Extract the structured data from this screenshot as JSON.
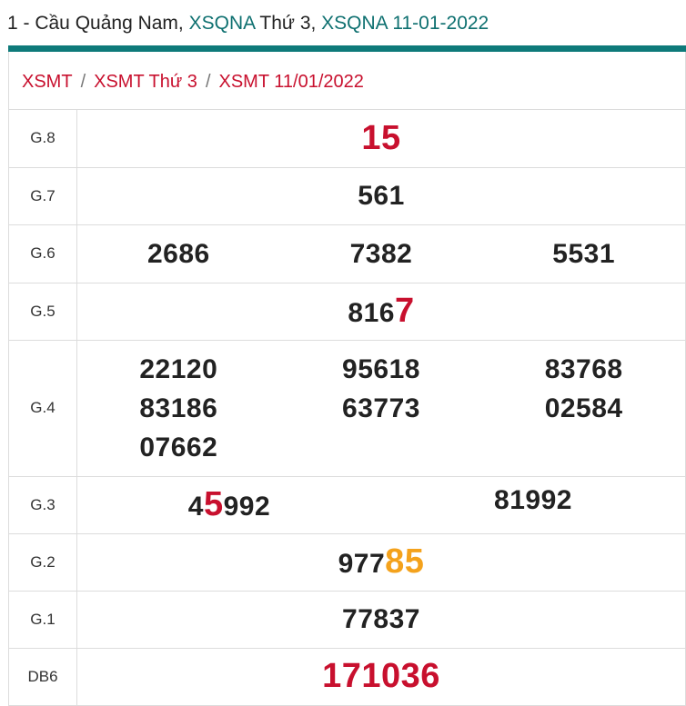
{
  "header": {
    "prefix": "1 - Cầu Quảng Nam, ",
    "link1": "XSQNA",
    "middle": " Thứ 3, ",
    "link2": "XSQNA 11-01-2022"
  },
  "breadcrumb": [
    "XSMT",
    "XSMT Thứ 3",
    "XSMT 11/01/2022"
  ],
  "results": {
    "g8": {
      "label": "G.8",
      "value": "15"
    },
    "g7": {
      "label": "G.7",
      "value": "561"
    },
    "g6": {
      "label": "G.6",
      "values": [
        "2686",
        "7382",
        "5531"
      ]
    },
    "g5": {
      "label": "G.5",
      "prefix": "816",
      "highlight": "7"
    },
    "g4": {
      "label": "G.4",
      "values": [
        "22120",
        "95618",
        "83768",
        "83186",
        "63773",
        "02584",
        "07662"
      ]
    },
    "g3": {
      "label": "G.3",
      "first": {
        "a": "4",
        "highlight": "5",
        "b": "992"
      },
      "second": "81992"
    },
    "g2": {
      "label": "G.2",
      "prefix": "977",
      "highlight": "85"
    },
    "g1": {
      "label": "G.1",
      "value": "77837"
    },
    "db": {
      "label": "DB6",
      "value": "171036"
    }
  },
  "colors": {
    "red": "#c8102e",
    "orange": "#f4a21c",
    "teal": "#0e7070"
  }
}
